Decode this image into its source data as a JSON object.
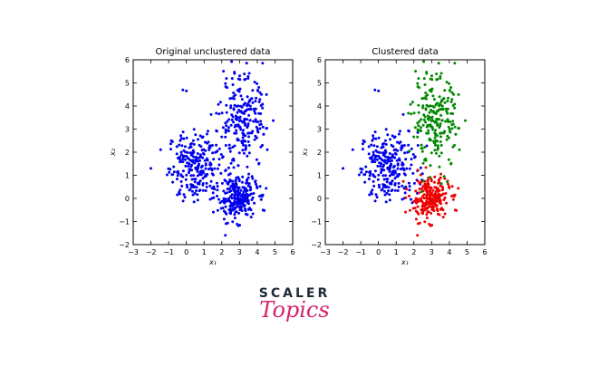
{
  "chart_data": [
    {
      "type": "scatter",
      "title": "Original unclustered data",
      "xlabel": "x₁",
      "ylabel": "x₂",
      "xlim": [
        -3,
        6
      ],
      "ylim": [
        -2,
        6
      ],
      "xticks": [
        "−3",
        "−2",
        "−1",
        "0",
        "1",
        "2",
        "3",
        "4",
        "5",
        "6"
      ],
      "yticks": [
        "−2",
        "−1",
        "0",
        "1",
        "2",
        "3",
        "4",
        "5",
        "6"
      ],
      "grid": false,
      "series": [
        {
          "color": "#0000ee",
          "clusters": [
            {
              "center": [
                0.6,
                1.4
              ],
              "spread": [
                0.8,
                0.75
              ],
              "count": 260
            },
            {
              "center": [
                2.9,
                0.0
              ],
              "spread": [
                0.55,
                0.45
              ],
              "count": 240
            },
            {
              "center": [
                3.2,
                3.3
              ],
              "spread": [
                0.65,
                1.0
              ],
              "count": 230
            }
          ],
          "extra_points": [
            [
              -0.2,
              4.7
            ],
            [
              0.0,
              4.65
            ],
            [
              3.4,
              5.85
            ],
            [
              4.3,
              5.85
            ],
            [
              2.2,
              -1.6
            ]
          ]
        }
      ]
    },
    {
      "type": "scatter",
      "title": "Clustered data",
      "xlabel": "x₁",
      "ylabel": "x₂",
      "xlim": [
        -3,
        6
      ],
      "ylim": [
        -2,
        6
      ],
      "xticks": [
        "−3",
        "−2",
        "−1",
        "0",
        "1",
        "2",
        "3",
        "4",
        "5",
        "6"
      ],
      "yticks": [
        "−2",
        "−1",
        "0",
        "1",
        "2",
        "3",
        "4",
        "5",
        "6"
      ],
      "grid": false,
      "series": [
        {
          "color": "#0000ee",
          "clusters": [
            {
              "center": [
                0.6,
                1.4
              ],
              "spread": [
                0.8,
                0.75
              ],
              "count": 260
            }
          ],
          "extra_points": [
            [
              -0.2,
              4.7
            ],
            [
              0.0,
              4.65
            ]
          ]
        },
        {
          "color": "#ee0000",
          "clusters": [
            {
              "center": [
                2.9,
                0.0
              ],
              "spread": [
                0.55,
                0.45
              ],
              "count": 240
            }
          ],
          "extra_points": [
            [
              2.2,
              -1.6
            ]
          ]
        },
        {
          "color": "#008800",
          "clusters": [
            {
              "center": [
                3.2,
                3.3
              ],
              "spread": [
                0.65,
                1.0
              ],
              "count": 230
            }
          ],
          "extra_points": [
            [
              3.4,
              5.85
            ],
            [
              4.3,
              5.85
            ]
          ]
        }
      ]
    }
  ],
  "logo": {
    "line1": "SCALER",
    "line2": "Topics"
  }
}
